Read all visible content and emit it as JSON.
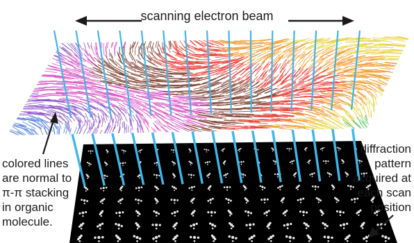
{
  "beam_label": "scanning electron beam",
  "left_caption": {
    "lines": [
      "colored lines",
      "are normal to",
      "π-π stacking",
      "in organic",
      "molecule."
    ]
  },
  "right_caption": {
    "lines": [
      "diffraction",
      "pattern",
      "acquired at",
      "each scan",
      "position"
    ]
  },
  "colors": {
    "beam": "#3fb6e8",
    "detector": "#000000",
    "spot": "#ffffff",
    "arrow": "#1a1a1a",
    "stacking_lines": [
      "#e8372c",
      "#f39a2a",
      "#e7d23c",
      "#5cc65a",
      "#42c3c8",
      "#4a78d8",
      "#8a4fc8",
      "#d64fc4",
      "#7a3a2a"
    ]
  }
}
